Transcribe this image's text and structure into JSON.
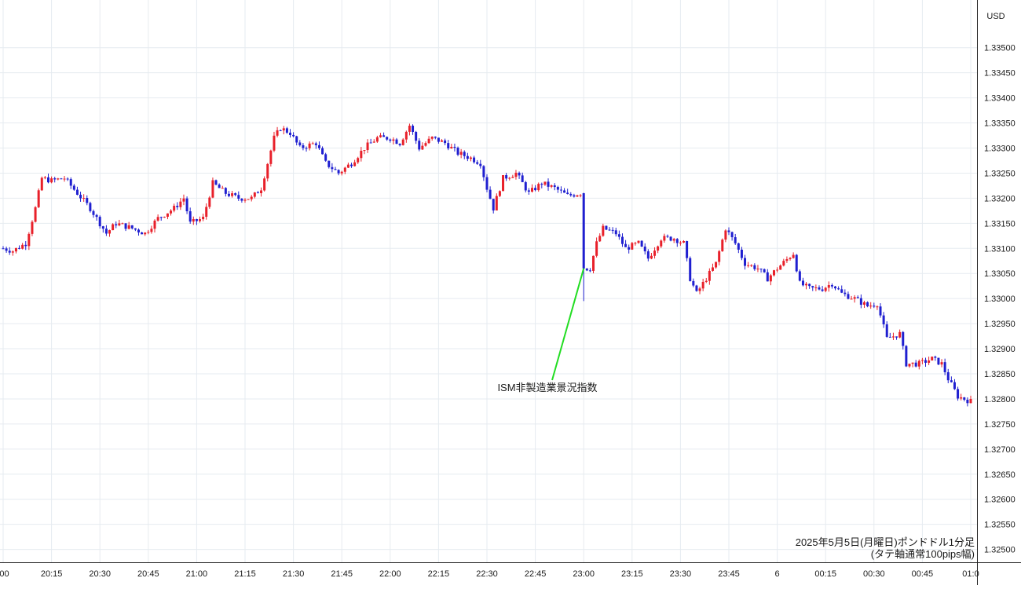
{
  "chart_data": {
    "type": "candlestick",
    "currency_label": "USD",
    "caption_line1": "2025年5月5日(月曜日)ポンドドル1分足",
    "caption_line2": "(タテ軸通常100pips幅)",
    "event_label": "ISM非製造業景況指数",
    "event_time": "23:00",
    "event_low": 1.32995,
    "ylim": [
      1.3249,
      1.3357
    ],
    "yticks": [
      "1.32500",
      "1.32550",
      "1.32600",
      "1.32650",
      "1.32700",
      "1.32750",
      "1.32800",
      "1.32850",
      "1.32900",
      "1.32950",
      "1.33000",
      "1.33050",
      "1.33100",
      "1.33150",
      "1.33200",
      "1.33250",
      "1.33300",
      "1.33350",
      "1.33400",
      "1.33450",
      "1.33500"
    ],
    "xticks": [
      ":00",
      "20:15",
      "20:30",
      "20:45",
      "21:00",
      "21:15",
      "21:30",
      "21:45",
      "22:00",
      "22:15",
      "22:30",
      "22:45",
      "23:00",
      "23:15",
      "23:30",
      "23:45",
      "6",
      "00:15",
      "00:30",
      "00:45",
      "01:0"
    ],
    "up_color": "#e8202a",
    "down_color": "#1f1fd0",
    "event_line_color": "#22dd22",
    "anchors": [
      {
        "t": "20:00",
        "p": 1.331
      },
      {
        "t": "20:03",
        "p": 1.33095
      },
      {
        "t": "20:07",
        "p": 1.3311
      },
      {
        "t": "20:10",
        "p": 1.3318
      },
      {
        "t": "20:12",
        "p": 1.3324
      },
      {
        "t": "20:15",
        "p": 1.33235
      },
      {
        "t": "20:19",
        "p": 1.3324
      },
      {
        "t": "20:23",
        "p": 1.3321
      },
      {
        "t": "20:27",
        "p": 1.3318
      },
      {
        "t": "20:32",
        "p": 1.3313
      },
      {
        "t": "20:35",
        "p": 1.3315
      },
      {
        "t": "20:40",
        "p": 1.3314
      },
      {
        "t": "20:44",
        "p": 1.3313
      },
      {
        "t": "20:48",
        "p": 1.3316
      },
      {
        "t": "20:53",
        "p": 1.3318
      },
      {
        "t": "20:56",
        "p": 1.332
      },
      {
        "t": "20:58",
        "p": 1.3315
      },
      {
        "t": "21:02",
        "p": 1.3316
      },
      {
        "t": "21:05",
        "p": 1.3323
      },
      {
        "t": "21:09",
        "p": 1.3321
      },
      {
        "t": "21:13",
        "p": 1.332
      },
      {
        "t": "21:17",
        "p": 1.332
      },
      {
        "t": "21:20",
        "p": 1.3322
      },
      {
        "t": "21:22",
        "p": 1.3327
      },
      {
        "t": "21:24",
        "p": 1.3332
      },
      {
        "t": "21:26",
        "p": 1.3334
      },
      {
        "t": "21:29",
        "p": 1.3333
      },
      {
        "t": "21:32",
        "p": 1.333
      },
      {
        "t": "21:37",
        "p": 1.3331
      },
      {
        "t": "21:40",
        "p": 1.3327
      },
      {
        "t": "21:44",
        "p": 1.3325
      },
      {
        "t": "21:48",
        "p": 1.3327
      },
      {
        "t": "21:52",
        "p": 1.333
      },
      {
        "t": "21:56",
        "p": 1.3332
      },
      {
        "t": "22:00",
        "p": 1.3332
      },
      {
        "t": "22:03",
        "p": 1.3331
      },
      {
        "t": "22:06",
        "p": 1.33345
      },
      {
        "t": "22:09",
        "p": 1.333
      },
      {
        "t": "22:13",
        "p": 1.3332
      },
      {
        "t": "22:17",
        "p": 1.3331
      },
      {
        "t": "22:21",
        "p": 1.3329
      },
      {
        "t": "22:25",
        "p": 1.3328
      },
      {
        "t": "22:28",
        "p": 1.3327
      },
      {
        "t": "22:30",
        "p": 1.3322
      },
      {
        "t": "22:32",
        "p": 1.3318
      },
      {
        "t": "22:35",
        "p": 1.3324
      },
      {
        "t": "22:39",
        "p": 1.3325
      },
      {
        "t": "22:43",
        "p": 1.3321
      },
      {
        "t": "22:47",
        "p": 1.3323
      },
      {
        "t": "22:51",
        "p": 1.3322
      },
      {
        "t": "22:55",
        "p": 1.33205
      },
      {
        "t": "22:59",
        "p": 1.3321
      },
      {
        "t": "23:00",
        "p": 1.3306
      },
      {
        "t": "23:02",
        "p": 1.3306
      },
      {
        "t": "23:04",
        "p": 1.3311
      },
      {
        "t": "23:06",
        "p": 1.3314
      },
      {
        "t": "23:10",
        "p": 1.3313
      },
      {
        "t": "23:13",
        "p": 1.331
      },
      {
        "t": "23:17",
        "p": 1.3311
      },
      {
        "t": "23:20",
        "p": 1.3308
      },
      {
        "t": "23:24",
        "p": 1.3312
      },
      {
        "t": "23:28",
        "p": 1.3312
      },
      {
        "t": "23:31",
        "p": 1.3311
      },
      {
        "t": "23:33",
        "p": 1.3304
      },
      {
        "t": "23:35",
        "p": 1.3301
      },
      {
        "t": "23:38",
        "p": 1.3304
      },
      {
        "t": "23:41",
        "p": 1.3307
      },
      {
        "t": "23:44",
        "p": 1.3314
      },
      {
        "t": "23:47",
        "p": 1.3311
      },
      {
        "t": "23:50",
        "p": 1.3307
      },
      {
        "t": "23:54",
        "p": 1.3306
      },
      {
        "t": "23:57",
        "p": 1.3304
      },
      {
        "t": "00:00",
        "p": 1.3306
      },
      {
        "t": "00:05",
        "p": 1.3309
      },
      {
        "t": "00:07",
        "p": 1.3303
      },
      {
        "t": "00:10",
        "p": 1.3302
      },
      {
        "t": "00:14",
        "p": 1.3302
      },
      {
        "t": "00:17",
        "p": 1.3303
      },
      {
        "t": "00:20",
        "p": 1.3301
      },
      {
        "t": "00:24",
        "p": 1.33
      },
      {
        "t": "00:28",
        "p": 1.32985
      },
      {
        "t": "00:31",
        "p": 1.3299
      },
      {
        "t": "00:34",
        "p": 1.3292
      },
      {
        "t": "00:38",
        "p": 1.3293
      },
      {
        "t": "00:40",
        "p": 1.3287
      },
      {
        "t": "00:44",
        "p": 1.3287
      },
      {
        "t": "00:48",
        "p": 1.3288
      },
      {
        "t": "00:51",
        "p": 1.3287
      },
      {
        "t": "00:53",
        "p": 1.3284
      },
      {
        "t": "00:56",
        "p": 1.32805
      },
      {
        "t": "01:00",
        "p": 1.32795
      }
    ]
  }
}
